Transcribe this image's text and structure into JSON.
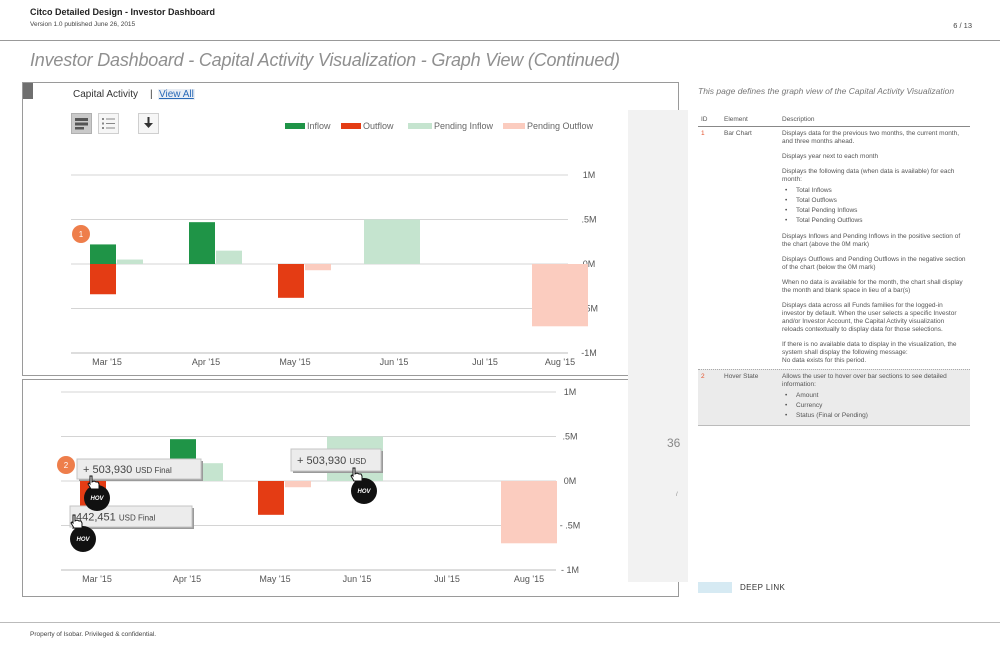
{
  "header": {
    "title": "Citco Detailed Design - Investor Dashboard",
    "version": "Version 1.0 published June 26, 2015",
    "page": "6 / 13"
  },
  "page_title": "Investor Dashboard - Capital Activity Visualization - Graph View (Continued)",
  "panel": {
    "title": "Capital Activity",
    "separator": "|",
    "view_all": "View All",
    "legend": [
      {
        "label": "Inflow",
        "color": "#1f9447"
      },
      {
        "label": "Outflow",
        "color": "#e43c14"
      },
      {
        "label": "Pending Inflow",
        "color": "#c5e4cf"
      },
      {
        "label": "Pending Outflow",
        "color": "#fbccbf"
      }
    ],
    "icons": [
      "bar-chart-view-icon",
      "list-view-icon",
      "download-icon"
    ]
  },
  "chart_data": [
    {
      "type": "bar",
      "categories": [
        "Mar '15",
        "Apr '15",
        "May '15",
        "Jun '15",
        "Jul '15",
        "Aug '15"
      ],
      "y_tick_labels": [
        "1M",
        ".5M",
        "0M",
        "-.5M",
        "-1M"
      ],
      "ylim": [
        -1.0,
        1.0
      ],
      "series": [
        {
          "name": "Inflow",
          "color": "#1f9447",
          "values": [
            0.22,
            0.47,
            0,
            0,
            0,
            0
          ]
        },
        {
          "name": "Outflow",
          "color": "#e43c14",
          "values": [
            -0.34,
            0,
            -0.38,
            0,
            0,
            0
          ]
        },
        {
          "name": "Pending Inflow",
          "color": "#c5e4cf",
          "values": [
            0.05,
            0.15,
            0,
            0.5,
            0,
            0
          ]
        },
        {
          "name": "Pending Outflow",
          "color": "#fbccbf",
          "values": [
            0,
            0,
            -0.07,
            0,
            0,
            -0.7
          ]
        }
      ],
      "annotation_badge": "1"
    },
    {
      "type": "bar",
      "categories": [
        "Mar '15",
        "Apr '15",
        "May '15",
        "Jun '15",
        "Jul '15",
        "Aug '15"
      ],
      "y_tick_labels": [
        "1M",
        ".5M",
        "0M",
        "- .5M",
        "- 1M"
      ],
      "ylim": [
        -1.0,
        1.0
      ],
      "series": [
        {
          "name": "Inflow",
          "color": "#1f9447",
          "values": [
            0.2,
            0.47,
            0,
            0,
            0,
            0
          ]
        },
        {
          "name": "Outflow",
          "color": "#e43c14",
          "values": [
            -0.34,
            0,
            -0.38,
            0,
            0,
            0
          ]
        },
        {
          "name": "Pending Inflow",
          "color": "#c5e4cf",
          "values": [
            0.05,
            0.2,
            0,
            0.5,
            0,
            0
          ]
        },
        {
          "name": "Pending Outflow",
          "color": "#fbccbf",
          "values": [
            0,
            0,
            -0.07,
            0,
            0,
            -0.7
          ]
        }
      ],
      "annotation_badge": "2",
      "tooltips": [
        {
          "amount": "+ 503,930",
          "currency": "USD",
          "status": "Final"
        },
        {
          "amount": "442,451",
          "currency": "USD",
          "status": "Final"
        },
        {
          "amount": "+ 503,930",
          "currency": "USD",
          "status": ""
        }
      ],
      "hover_label": "HOV"
    }
  ],
  "right": {
    "title": "This page defines the graph view of the Capital Activity Visualization",
    "table_headers": {
      "id": "ID",
      "element": "Element",
      "description": "Description"
    },
    "rows": [
      {
        "id": "1",
        "element": "Bar Chart",
        "desc": [
          "Displays data for the previous two months, the current month, and three months ahead.",
          "Displays year next to each month",
          "Displays the following data (when data is available) for each month:",
          "Displays Inflows and Pending Inflows in the positive section of the chart (above the 0M mark)",
          "Displays Outflows and Pending Outflows in the negative section of the chart (below the 0M mark)",
          "When no data is available for the month, the chart shall display the month and blank space in lieu of a bar(s)",
          "Displays data across all Funds families for the logged-in investor by default. When the user selects a specific Investor and/or Investor Account, the Capital Activity visualization reloads contextually to display data for those selections.",
          "If there is no available data to display in the visualization, the system shall display the following message:"
        ],
        "bullets": [
          "Total Inflows",
          "Total Outflows",
          "Total Pending Inflows",
          "Total Pending Outflows"
        ],
        "message": "No data exists for this period."
      },
      {
        "id": "2",
        "element": "Hover State",
        "desc": [
          "Allows the user to hover over bar sections to see detailed information:"
        ],
        "bullets": [
          "Amount",
          "Currency",
          "Status (Final or Pending)"
        ]
      }
    ],
    "ghost_number": "36",
    "ghost_mark": "/",
    "deeplink": "DEEP LINK"
  },
  "footer": "Property of Isobar. Privileged & confidential."
}
